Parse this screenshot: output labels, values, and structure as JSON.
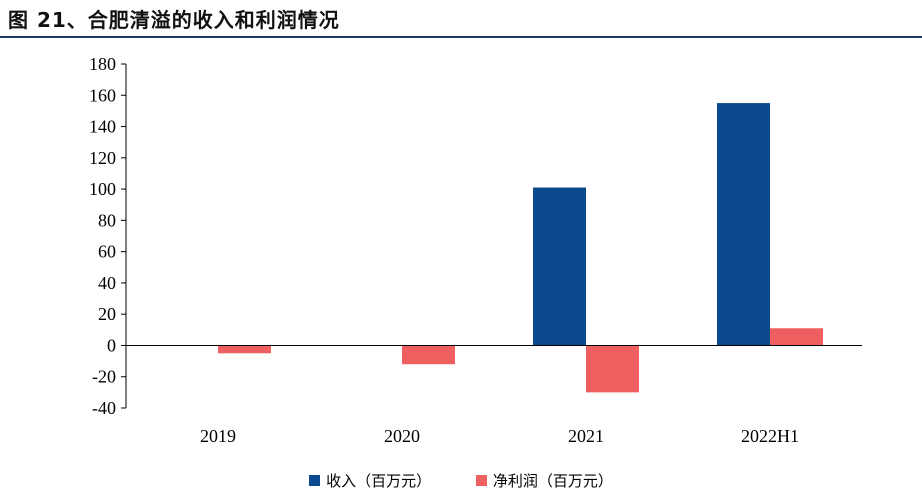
{
  "title": "图 21、合肥清溢的收入和利润情况",
  "chart_data": {
    "type": "bar",
    "categories": [
      "2019",
      "2020",
      "2021",
      "2022H1"
    ],
    "series": [
      {
        "name": "收入（百万元）",
        "color": "#0b4a8f",
        "values": [
          0,
          0,
          101,
          155
        ]
      },
      {
        "name": "净利润（百万元）",
        "color": "#ee5f5f",
        "values": [
          -5,
          -12,
          -30,
          11
        ]
      }
    ],
    "ylim": [
      -40,
      180
    ],
    "yticks": [
      180,
      160,
      140,
      120,
      100,
      80,
      60,
      40,
      20,
      0,
      -20,
      -40
    ],
    "ytick_labels": [
      "180",
      "160",
      "140",
      "120",
      "100",
      "80",
      "60",
      "40",
      "20",
      "0",
      "-20",
      "-40"
    ],
    "legend_position": "bottom",
    "grid": false
  }
}
